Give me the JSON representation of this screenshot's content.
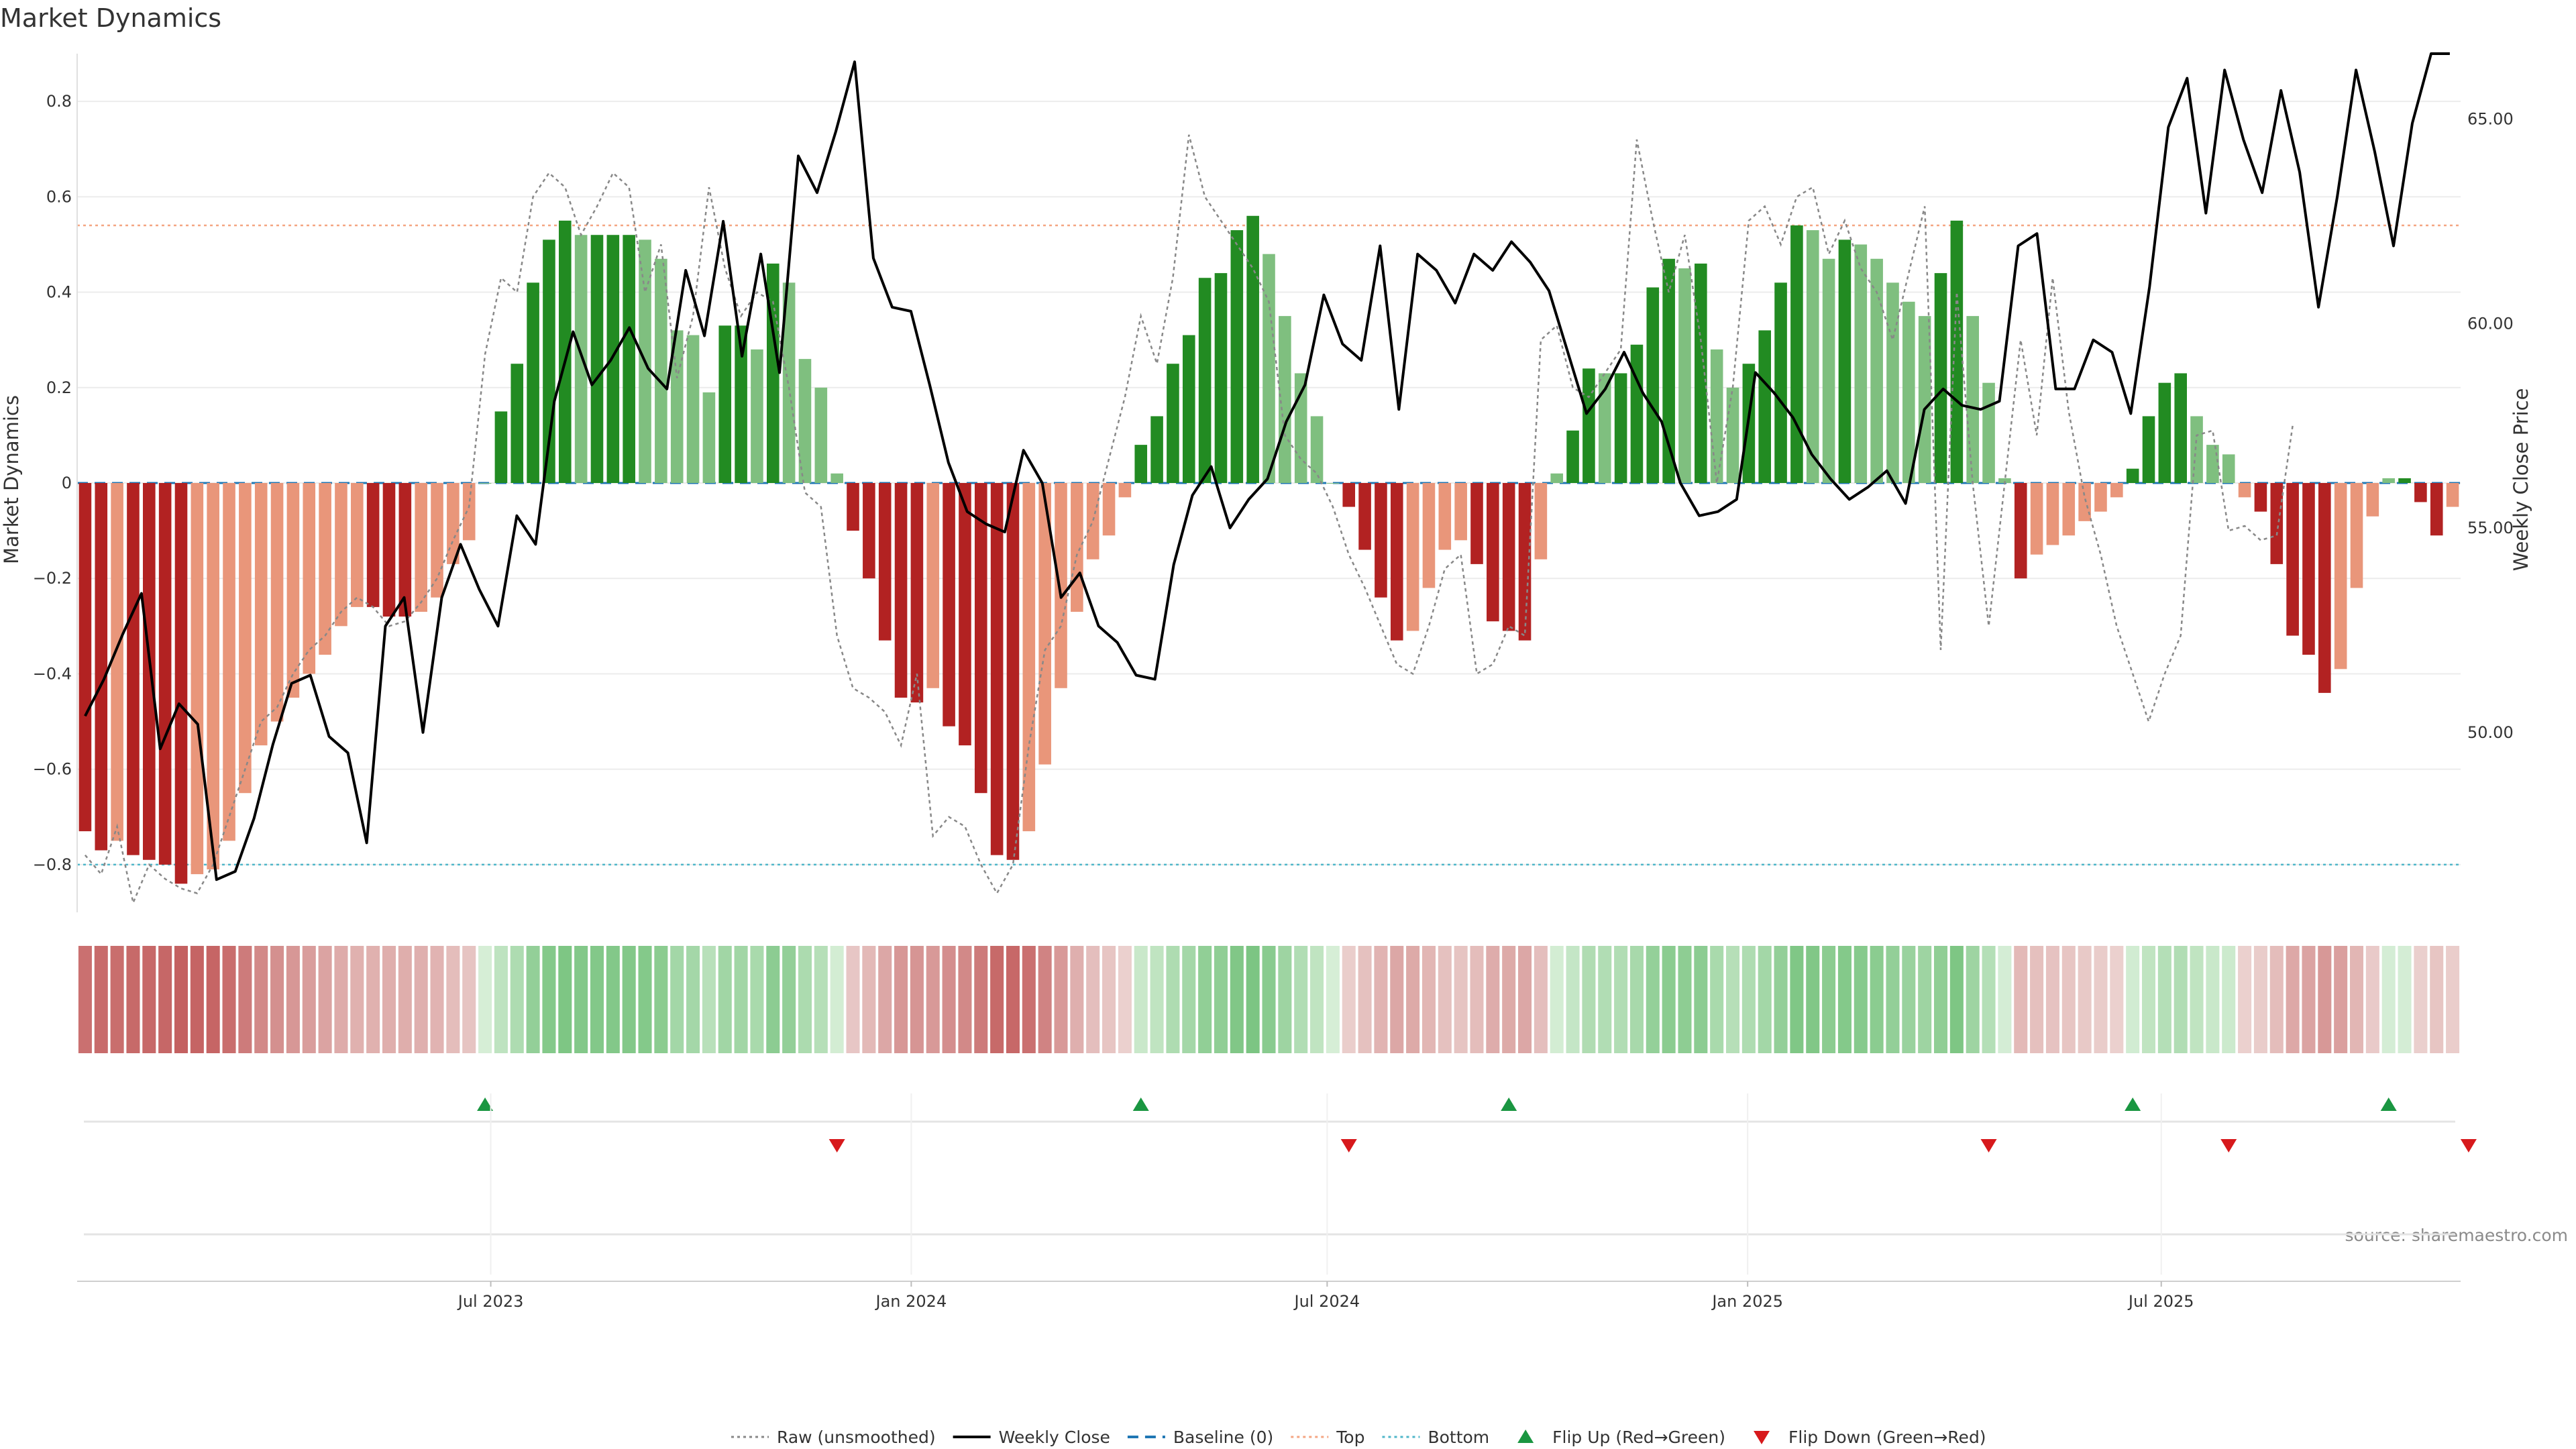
{
  "chart_data": {
    "type": "bar",
    "title": "Market Dynamics",
    "ylabel": "Market Dynamics",
    "y2label": "Weekly Close Price",
    "source": "source: sharemaestro.com",
    "ylim": [
      -0.9,
      0.9
    ],
    "y_ticks": [
      -0.8,
      -0.6,
      -0.4,
      -0.2,
      0,
      0.2,
      0.4,
      0.6,
      0.8
    ],
    "y_tick_labels": [
      "−0.8",
      "−0.6",
      "−0.4",
      "−0.2",
      "0",
      "0.2",
      "0.4",
      "0.6",
      "0.8"
    ],
    "y2lim": [
      45.6,
      66.6
    ],
    "y2_ticks": [
      50,
      55,
      60,
      65
    ],
    "y2_tick_labels": [
      "50.00",
      "55.00",
      "60.00",
      "65.00"
    ],
    "x_start": "2023-01-01",
    "x_ticks": [
      "2023-07-01",
      "2024-01-01",
      "2024-07-01",
      "2025-01-01",
      "2025-07-01"
    ],
    "x_tick_labels": [
      "Jul 2023",
      "Jan 2024",
      "Jul 2024",
      "Jan 2025",
      "Jul 2025"
    ],
    "top_line": 0.54,
    "bottom_line": -0.8,
    "colors": {
      "strong_red": "#b22222",
      "weak_red": "#e9967a",
      "strong_green": "#228b22",
      "weak_green": "#7fbf7f",
      "close": "#000000",
      "raw": "#888888",
      "baseline": "#1f77b4",
      "top": "#f4a582",
      "bottom": "#4fb6c9",
      "flip_up": "#1a9641",
      "flip_down": "#d7191c"
    },
    "series": [
      {
        "name": "Market Dynamics",
        "values": [
          -0.73,
          -0.77,
          -0.75,
          -0.78,
          -0.79,
          -0.8,
          -0.84,
          -0.82,
          -0.81,
          -0.75,
          -0.65,
          -0.55,
          -0.5,
          -0.45,
          -0.4,
          -0.36,
          -0.3,
          -0.26,
          -0.26,
          -0.28,
          -0.28,
          -0.27,
          -0.24,
          -0.17,
          -0.12,
          0.0,
          0.15,
          0.25,
          0.42,
          0.51,
          0.55,
          0.52,
          0.52,
          0.52,
          0.52,
          0.51,
          0.47,
          0.32,
          0.31,
          0.19,
          0.33,
          0.33,
          0.28,
          0.46,
          0.42,
          0.26,
          0.2,
          0.02,
          -0.1,
          -0.2,
          -0.33,
          -0.45,
          -0.46,
          -0.43,
          -0.51,
          -0.55,
          -0.65,
          -0.78,
          -0.79,
          -0.73,
          -0.59,
          -0.43,
          -0.27,
          -0.16,
          -0.11,
          -0.03,
          0.08,
          0.14,
          0.25,
          0.31,
          0.43,
          0.44,
          0.53,
          0.56,
          0.48,
          0.35,
          0.23,
          0.14,
          0.0,
          -0.05,
          -0.14,
          -0.24,
          -0.33,
          -0.31,
          -0.22,
          -0.14,
          -0.12,
          -0.17,
          -0.29,
          -0.31,
          -0.33,
          -0.16,
          0.02,
          0.11,
          0.24,
          0.23,
          0.23,
          0.29,
          0.41,
          0.47,
          0.45,
          0.46,
          0.28,
          0.2,
          0.25,
          0.32,
          0.42,
          0.54,
          0.53,
          0.47,
          0.51,
          0.5,
          0.47,
          0.42,
          0.38,
          0.35,
          0.44,
          0.55,
          0.35,
          0.21,
          0.01,
          -0.2,
          -0.15,
          -0.13,
          -0.11,
          -0.08,
          -0.06,
          -0.03,
          0.03,
          0.14,
          0.21,
          0.23,
          0.14,
          0.08,
          0.06,
          -0.03,
          -0.06,
          -0.17,
          -0.32,
          -0.36,
          -0.44,
          -0.39,
          -0.22,
          -0.07,
          0.01,
          0.01,
          -0.04,
          -0.11,
          -0.05
        ]
      },
      {
        "name": "Weekly Close",
        "values": [
          50.4,
          51.3,
          52.4,
          53.4,
          49.6,
          50.7,
          50.2,
          46.4,
          46.6,
          47.9,
          49.7,
          51.2,
          51.4,
          49.9,
          49.5,
          47.3,
          52.6,
          53.3,
          50.0,
          53.3,
          54.6,
          53.5,
          52.6,
          55.3,
          54.6,
          58.1,
          59.8,
          58.5,
          59.1,
          59.9,
          58.9,
          58.4,
          61.3,
          59.7,
          62.5,
          59.2,
          61.7,
          58.8,
          64.1,
          63.2,
          64.7,
          66.4,
          61.6,
          60.4,
          60.3,
          58.5,
          56.6,
          55.4,
          55.1,
          54.9,
          56.9,
          56.1,
          53.3,
          53.9,
          52.6,
          52.2,
          51.4,
          51.3,
          54.1,
          55.8,
          56.5,
          55.0,
          55.7,
          56.2,
          57.6,
          58.5,
          60.7,
          59.5,
          59.1,
          61.9,
          57.9,
          61.7,
          61.3,
          60.5,
          61.7,
          61.3,
          62.0,
          61.5,
          60.8,
          59.3,
          57.8,
          58.4,
          59.3,
          58.3,
          57.6,
          56.1,
          55.3,
          55.4,
          55.7,
          58.8,
          58.3,
          57.7,
          56.8,
          56.2,
          55.7,
          56.0,
          56.4,
          55.6,
          57.9,
          58.4,
          58.0,
          57.9,
          58.1,
          61.9,
          62.2,
          58.4,
          58.4,
          59.6,
          59.3,
          57.8,
          60.9,
          64.8,
          66.0,
          62.7,
          66.2,
          64.5,
          63.2,
          65.7,
          63.7,
          60.4,
          63.1,
          66.2,
          64.2,
          61.9,
          64.9,
          66.6,
          66.6
        ],
        "close_points": [
          {
            "x": 0,
            "y": 50.4
          },
          {
            "x": 1,
            "y": 51.3
          },
          {
            "x": 2,
            "y": 52.4
          },
          {
            "x": 3,
            "y": 53.4
          },
          {
            "x": 4,
            "y": 49.6
          },
          {
            "x": 5,
            "y": 50.7
          },
          {
            "x": 6,
            "y": 50.2
          },
          {
            "x": 7,
            "y": 46.4
          },
          {
            "x": 8,
            "y": 46.6
          },
          {
            "x": 9,
            "y": 47.9
          },
          {
            "x": 10,
            "y": 49.7
          },
          {
            "x": 11,
            "y": 51.2
          },
          {
            "x": 12,
            "y": 51.4
          },
          {
            "x": 13,
            "y": 49.9
          },
          {
            "x": 14,
            "y": 49.5
          },
          {
            "x": 15,
            "y": 47.3
          },
          {
            "x": 16,
            "y": 52.6
          },
          {
            "x": 17,
            "y": 53.3
          },
          {
            "x": 18,
            "y": 50.0
          },
          {
            "x": 19,
            "y": 53.3
          },
          {
            "x": 20,
            "y": 54.6
          },
          {
            "x": 21,
            "y": 53.5
          },
          {
            "x": 22,
            "y": 52.6
          },
          {
            "x": 23,
            "y": 55.3
          },
          {
            "x": 24,
            "y": 54.6
          },
          {
            "x": 25,
            "y": 58.1
          },
          {
            "x": 26,
            "y": 59.8
          },
          {
            "x": 27,
            "y": 58.5
          },
          {
            "x": 28,
            "y": 59.1
          },
          {
            "x": 29,
            "y": 59.9
          },
          {
            "x": 30,
            "y": 58.9
          },
          {
            "x": 31,
            "y": 58.4
          },
          {
            "x": 32,
            "y": 61.3
          },
          {
            "x": 33,
            "y": 59.7
          },
          {
            "x": 34,
            "y": 62.5
          },
          {
            "x": 35,
            "y": 59.2
          },
          {
            "x": 36,
            "y": 61.7
          },
          {
            "x": 37,
            "y": 58.8
          },
          {
            "x": 38,
            "y": 64.1
          },
          {
            "x": 39,
            "y": 63.2
          },
          {
            "x": 40,
            "y": 64.7
          },
          {
            "x": 41,
            "y": 66.4
          },
          {
            "x": 42,
            "y": 61.6
          },
          {
            "x": 43,
            "y": 60.4
          },
          {
            "x": 44,
            "y": 60.3
          },
          {
            "x": 45,
            "y": 58.5
          },
          {
            "x": 46,
            "y": 56.6
          },
          {
            "x": 47,
            "y": 55.4
          },
          {
            "x": 48,
            "y": 55.1
          },
          {
            "x": 49,
            "y": 54.9
          },
          {
            "x": 50,
            "y": 56.9
          },
          {
            "x": 51,
            "y": 56.1
          },
          {
            "x": 52,
            "y": 53.3
          },
          {
            "x": 53,
            "y": 53.9
          },
          {
            "x": 54,
            "y": 52.6
          },
          {
            "x": 55,
            "y": 52.2
          },
          {
            "x": 56,
            "y": 51.4
          },
          {
            "x": 57,
            "y": 51.3
          },
          {
            "x": 58,
            "y": 54.1
          },
          {
            "x": 59,
            "y": 55.8
          },
          {
            "x": 60,
            "y": 56.5
          },
          {
            "x": 61,
            "y": 55.0
          },
          {
            "x": 62,
            "y": 55.7
          },
          {
            "x": 63,
            "y": 56.2
          },
          {
            "x": 64,
            "y": 57.6
          },
          {
            "x": 65,
            "y": 58.5
          },
          {
            "x": 66,
            "y": 60.7
          },
          {
            "x": 67,
            "y": 59.5
          },
          {
            "x": 68,
            "y": 59.1
          },
          {
            "x": 69,
            "y": 61.9
          },
          {
            "x": 70,
            "y": 57.9
          },
          {
            "x": 71,
            "y": 61.7
          },
          {
            "x": 72,
            "y": 61.3
          },
          {
            "x": 73,
            "y": 60.5
          },
          {
            "x": 74,
            "y": 61.7
          },
          {
            "x": 75,
            "y": 61.3
          },
          {
            "x": 76,
            "y": 62.0
          },
          {
            "x": 77,
            "y": 61.5
          },
          {
            "x": 78,
            "y": 60.8
          },
          {
            "x": 79,
            "y": 59.3
          },
          {
            "x": 80,
            "y": 57.8
          },
          {
            "x": 81,
            "y": 58.4
          },
          {
            "x": 82,
            "y": 59.3
          },
          {
            "x": 83,
            "y": 58.3
          },
          {
            "x": 84,
            "y": 57.6
          },
          {
            "x": 85,
            "y": 56.1
          },
          {
            "x": 86,
            "y": 55.3
          },
          {
            "x": 87,
            "y": 55.4
          },
          {
            "x": 88,
            "y": 55.7
          },
          {
            "x": 89,
            "y": 58.8
          },
          {
            "x": 90,
            "y": 58.3
          },
          {
            "x": 91,
            "y": 57.7
          },
          {
            "x": 92,
            "y": 56.8
          },
          {
            "x": 93,
            "y": 56.2
          },
          {
            "x": 94,
            "y": 55.7
          },
          {
            "x": 95,
            "y": 56.0
          },
          {
            "x": 96,
            "y": 56.4
          },
          {
            "x": 97,
            "y": 55.6
          },
          {
            "x": 98,
            "y": 57.9
          },
          {
            "x": 99,
            "y": 58.4
          },
          {
            "x": 100,
            "y": 58.0
          },
          {
            "x": 101,
            "y": 57.9
          },
          {
            "x": 102,
            "y": 58.1
          },
          {
            "x": 103,
            "y": 61.9
          },
          {
            "x": 104,
            "y": 62.2
          },
          {
            "x": 105,
            "y": 58.4
          },
          {
            "x": 106,
            "y": 58.4
          },
          {
            "x": 107,
            "y": 59.6
          },
          {
            "x": 108,
            "y": 59.3
          },
          {
            "x": 109,
            "y": 57.8
          },
          {
            "x": 110,
            "y": 60.9
          },
          {
            "x": 111,
            "y": 64.8
          },
          {
            "x": 112,
            "y": 66.0
          },
          {
            "x": 113,
            "y": 62.7
          },
          {
            "x": 114,
            "y": 66.2
          },
          {
            "x": 115,
            "y": 64.5
          },
          {
            "x": 116,
            "y": 63.2
          },
          {
            "x": 117,
            "y": 65.7
          },
          {
            "x": 118,
            "y": 63.7
          },
          {
            "x": 119,
            "y": 60.4
          },
          {
            "x": 120,
            "y": 63.1
          },
          {
            "x": 121,
            "y": 66.2
          },
          {
            "x": 122,
            "y": 64.2
          },
          {
            "x": 123,
            "y": 61.9
          },
          {
            "x": 124,
            "y": 64.9
          },
          {
            "x": 125,
            "y": 66.6
          },
          {
            "x": 126,
            "y": 66.6
          }
        ]
      },
      {
        "name": "Raw (unsmoothed)",
        "values": [
          -0.78,
          -0.82,
          -0.72,
          -0.88,
          -0.8,
          -0.83,
          -0.85,
          -0.86,
          -0.8,
          -0.7,
          -0.6,
          -0.5,
          -0.47,
          -0.4,
          -0.35,
          -0.32,
          -0.27,
          -0.24,
          -0.26,
          -0.3,
          -0.29,
          -0.25,
          -0.2,
          -0.12,
          -0.05,
          0.27,
          0.43,
          0.4,
          0.6,
          0.65,
          0.62,
          0.52,
          0.58,
          0.65,
          0.62,
          0.4,
          0.5,
          0.22,
          0.35,
          0.62,
          0.45,
          0.35,
          0.4,
          0.38,
          0.2,
          -0.02,
          -0.05,
          -0.32,
          -0.43,
          -0.45,
          -0.48,
          -0.55,
          -0.4,
          -0.74,
          -0.7,
          -0.72,
          -0.8,
          -0.86,
          -0.8,
          -0.55,
          -0.35,
          -0.3,
          -0.15,
          -0.08,
          0.05,
          0.18,
          0.35,
          0.25,
          0.43,
          0.73,
          0.6,
          0.55,
          0.5,
          0.45,
          0.38,
          0.1,
          0.05,
          0.02,
          -0.05,
          -0.15,
          -0.22,
          -0.3,
          -0.38,
          -0.4,
          -0.3,
          -0.18,
          -0.15,
          -0.4,
          -0.38,
          -0.3,
          -0.32,
          0.3,
          0.33,
          0.2,
          0.18,
          0.23,
          0.28,
          0.72,
          0.55,
          0.4,
          0.52,
          0.3,
          0.0,
          0.2,
          0.55,
          0.58,
          0.5,
          0.6,
          0.62,
          0.48,
          0.55,
          0.45,
          0.4,
          0.3,
          0.44,
          0.58,
          -0.35,
          0.4,
          0.0,
          -0.3,
          0.0,
          0.3,
          0.1,
          0.43,
          0.15,
          -0.03,
          -0.15,
          -0.3,
          -0.4,
          -0.5,
          -0.4,
          -0.32,
          0.1,
          0.11,
          -0.1,
          -0.09,
          -0.12,
          -0.11,
          0.12
        ]
      }
    ],
    "flip_up_at": [
      25,
      66,
      89,
      128,
      144
    ],
    "flip_down_at": [
      47,
      79,
      119,
      134,
      149
    ],
    "legend": {
      "position": "bottom",
      "items": [
        {
          "label": "Raw (unsmoothed)",
          "kind": "dotted-line",
          "color": "#888888"
        },
        {
          "label": "Weekly Close",
          "kind": "solid-line",
          "color": "#000000"
        },
        {
          "label": "Baseline (0)",
          "kind": "dashed-line",
          "color": "#1f77b4"
        },
        {
          "label": "Top",
          "kind": "dotted-line",
          "color": "#f4a582"
        },
        {
          "label": "Bottom",
          "kind": "dotted-line",
          "color": "#4fb6c9"
        },
        {
          "label": "Flip Up (Red→Green)",
          "kind": "triangle-up",
          "color": "#1a9641"
        },
        {
          "label": "Flip Down (Green→Red)",
          "kind": "triangle-down",
          "color": "#d7191c"
        }
      ]
    }
  }
}
